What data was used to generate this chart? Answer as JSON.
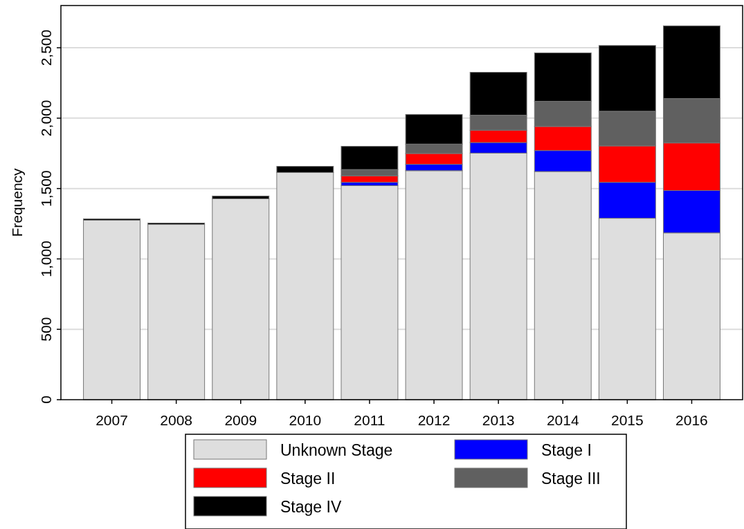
{
  "chart_data": {
    "type": "bar",
    "ylabel": "Frequency",
    "stacked": true,
    "categories": [
      "2007",
      "2008",
      "2009",
      "2010",
      "2011",
      "2012",
      "2013",
      "2014",
      "2015",
      "2016"
    ],
    "series": [
      {
        "name": "Unknown Stage",
        "color": "#dedede",
        "values": [
          1275,
          1245,
          1427,
          1614,
          1521,
          1627,
          1752,
          1621,
          1289,
          1185
        ]
      },
      {
        "name": "Stage I",
        "color": "#0000ff",
        "values": [
          0,
          0,
          0,
          0,
          23,
          45,
          75,
          149,
          255,
          301
        ]
      },
      {
        "name": "Stage II",
        "color": "#ff0000",
        "values": [
          0,
          0,
          0,
          0,
          46,
          77,
          87,
          171,
          259,
          338
        ]
      },
      {
        "name": "Stage III",
        "color": "#606060",
        "values": [
          0,
          0,
          0,
          0,
          45,
          67,
          107,
          179,
          246,
          315
        ]
      },
      {
        "name": "Stage IV",
        "color": "#000000",
        "values": [
          10,
          10,
          20,
          44,
          165,
          210,
          305,
          344,
          467,
          517
        ]
      }
    ],
    "ylim": [
      0,
      2800
    ],
    "yticks": [
      {
        "value": 0,
        "label": "0"
      },
      {
        "value": 500,
        "label": "500"
      },
      {
        "value": 1000,
        "label": "1,000"
      },
      {
        "value": 1500,
        "label": "1,500"
      },
      {
        "value": 2000,
        "label": "2,000"
      },
      {
        "value": 2500,
        "label": "2,500"
      }
    ],
    "grid": "y",
    "legend": "bottom"
  }
}
